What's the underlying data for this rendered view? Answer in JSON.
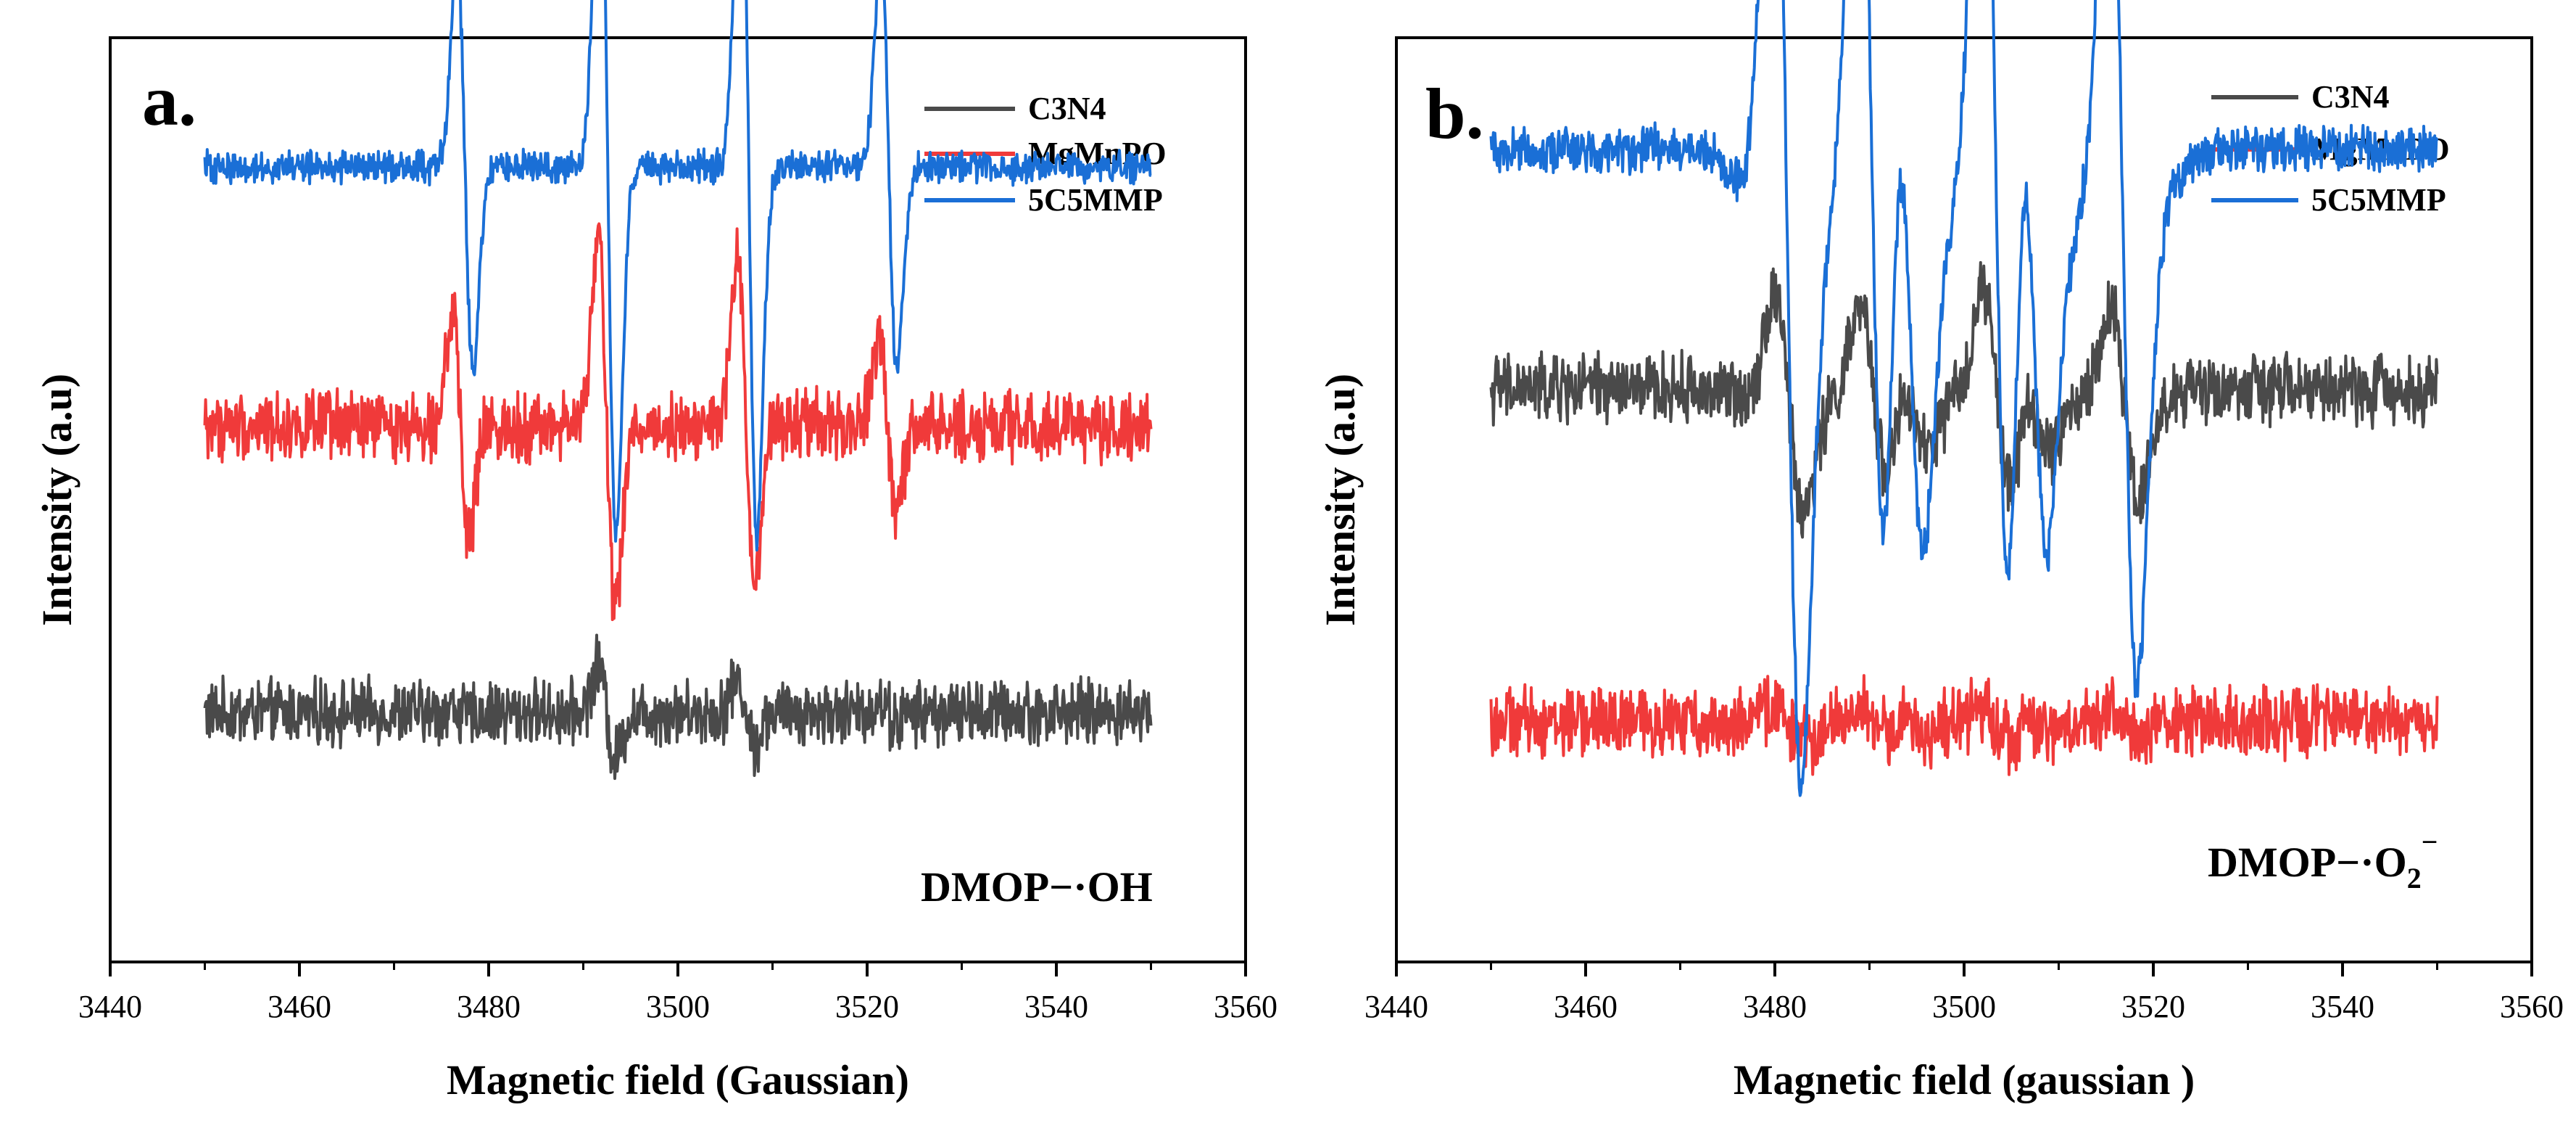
{
  "chart_data": [
    {
      "panel": "a.",
      "type": "line",
      "title": "",
      "xlabel": "Magnetic field (Gaussian)",
      "ylabel": "Intensity (a.u)",
      "annotation": "DMOP−·OH",
      "xlim": [
        3440,
        3560
      ],
      "xticks": [
        3440,
        3460,
        3480,
        3500,
        3520,
        3540,
        3560
      ],
      "yticks_shown": false,
      "legend_position": "top-right",
      "x_range": [
        3450,
        3550
      ],
      "series": [
        {
          "name": "C3N4",
          "color": "#4a4a4a",
          "baseline": 0.27,
          "noise": 0.028,
          "shape": "quartet",
          "peaks_x": [
            3477,
            3492.5,
            3507.2,
            3522.2
          ],
          "peak_amplitudes": [
            0.005,
            0.05,
            0.035,
            0.01
          ],
          "peak_width": 0.9
        },
        {
          "name": "MgMnPO",
          "color": "#f03a3a",
          "baseline": 0.58,
          "noise": 0.03,
          "shape": "quartet",
          "peaks_x": [
            3477,
            3492.5,
            3507.2,
            3522.2
          ],
          "peak_amplitudes": [
            0.12,
            0.2,
            0.18,
            0.1
          ],
          "peak_width": 0.9
        },
        {
          "name": "5C5MMP",
          "color": "#1a6fd6",
          "baseline": 0.86,
          "noise": 0.014,
          "shape": "quartet",
          "peaks_x": [
            3477.5,
            3492.6,
            3507.5,
            3522.3
          ],
          "peak_amplitudes": [
            0.22,
            0.4,
            0.4,
            0.22
          ],
          "peak_width": 0.85
        }
      ]
    },
    {
      "panel": "b.",
      "type": "line",
      "title": "",
      "xlabel": "Magnetic field (gaussian )",
      "ylabel": "Intensity (a.u)",
      "annotation": "DMOP−·O",
      "annotation_sub": "2",
      "annotation_sup": "−",
      "xlim": [
        3440,
        3560
      ],
      "xticks": [
        3440,
        3460,
        3480,
        3500,
        3520,
        3540,
        3560
      ],
      "yticks_shown": false,
      "legend_position": "top-right",
      "x_range": [
        3450,
        3550
      ],
      "series": [
        {
          "name": "C3N4",
          "color": "#4a4a4a",
          "baseline": 0.62,
          "noise": 0.03,
          "shape": "multiplet",
          "peaks_x": [
            3481.5,
            3490.5,
            3494.5,
            3503.5,
            3507.5,
            3517
          ],
          "peak_amplitudes": [
            0.12,
            0.1,
            0.05,
            0.12,
            0.05,
            0.1
          ],
          "peak_width": 1.5
        },
        {
          "name": "MgMnPO",
          "color": "#f03a3a",
          "baseline": 0.26,
          "noise": 0.03,
          "shape": "multiplet",
          "peaks_x": [
            3481.5,
            3490.5,
            3494.5,
            3503.5,
            3507.5,
            3517
          ],
          "peak_amplitudes": [
            0.02,
            0.015,
            0.01,
            0.02,
            0.01,
            0.015
          ],
          "peak_width": 1.5
        },
        {
          "name": "5C5MMP",
          "color": "#1a6fd6",
          "baseline": 0.88,
          "noise": 0.02,
          "shape": "multiplet",
          "peaks_x": [
            3481.3,
            3490.3,
            3494.2,
            3503.4,
            3507.3,
            3516.8
          ],
          "peak_amplitudes": [
            0.6,
            0.55,
            0.35,
            0.6,
            0.35,
            0.5
          ],
          "peak_width": 1.5
        }
      ]
    }
  ]
}
